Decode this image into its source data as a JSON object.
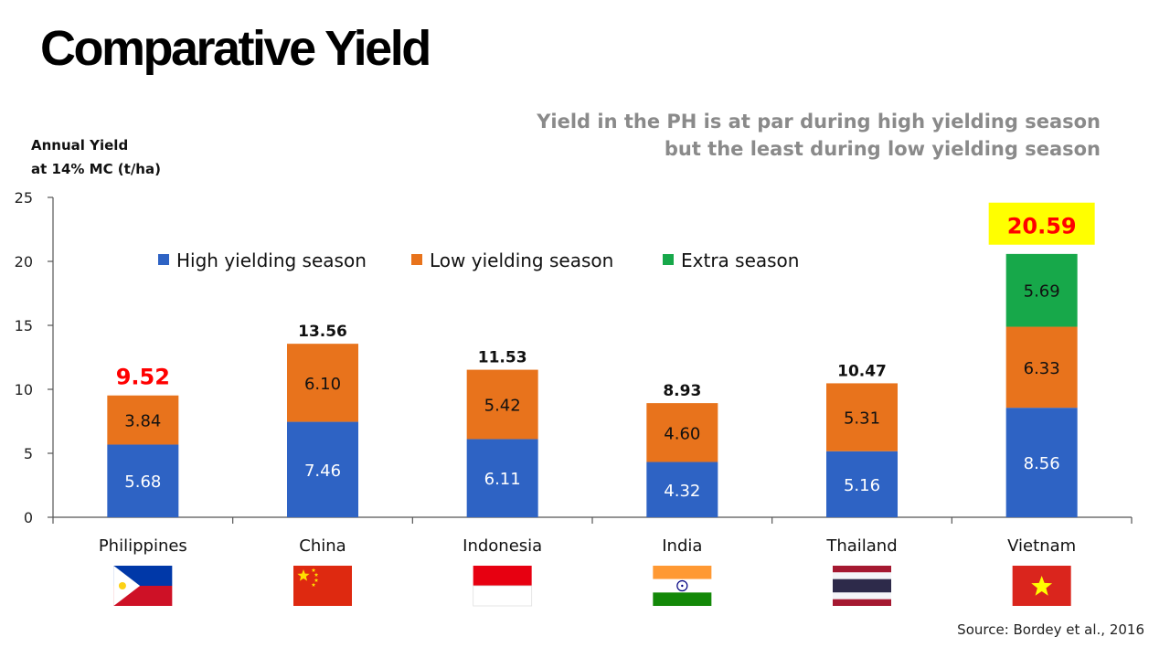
{
  "page": {
    "title": "Comparative Yield",
    "subtitle_line1": "Yield in the PH is at par during high yielding season",
    "subtitle_line2": "but the least during low yielding season",
    "ylabel_line1": "Annual Yield",
    "ylabel_line2": "at 14% MC (t/ha)",
    "source": "Source: Bordey et al., 2016"
  },
  "colors": {
    "high": "#2e63c4",
    "low": "#e8731c",
    "extra": "#17a84a",
    "highlight_text": "#ff0000",
    "highlight_box": "#ffff00"
  },
  "chart_data": {
    "type": "bar",
    "stacked": true,
    "ylim": [
      0,
      25
    ],
    "yticks": [
      0,
      5,
      10,
      15,
      20,
      25
    ],
    "categories": [
      "Philippines",
      "China",
      "Indonesia",
      "India",
      "Thailand",
      "Vietnam"
    ],
    "series": [
      {
        "name": "High yielding season",
        "key": "high",
        "values": [
          5.68,
          7.46,
          6.11,
          4.32,
          5.16,
          8.56
        ]
      },
      {
        "name": "Low yielding season",
        "key": "low",
        "values": [
          3.84,
          6.1,
          5.42,
          4.6,
          5.31,
          6.33
        ]
      },
      {
        "name": "Extra season",
        "key": "extra",
        "values": [
          null,
          null,
          null,
          null,
          null,
          5.69
        ]
      }
    ],
    "value_labels": [
      [
        "5.68",
        "3.84",
        ""
      ],
      [
        "7.46",
        "6.10",
        ""
      ],
      [
        "6.11",
        "5.42",
        ""
      ],
      [
        "4.32",
        "4.60",
        ""
      ],
      [
        "5.16",
        "5.31",
        ""
      ],
      [
        "8.56",
        "6.33",
        "5.69"
      ]
    ],
    "totals": [
      9.52,
      13.56,
      11.53,
      8.93,
      10.47,
      20.59
    ],
    "total_labels": [
      "9.52",
      "13.56",
      "11.53",
      "8.93",
      "10.47",
      "20.59"
    ],
    "highlighted_totals": [
      "Philippines",
      "Vietnam"
    ],
    "boxed_totals": [
      "Vietnam"
    ],
    "legend_position": "top-center",
    "grid": false
  },
  "flags": [
    "philippines-flag",
    "china-flag",
    "indonesia-flag",
    "india-flag",
    "thailand-flag",
    "vietnam-flag"
  ]
}
